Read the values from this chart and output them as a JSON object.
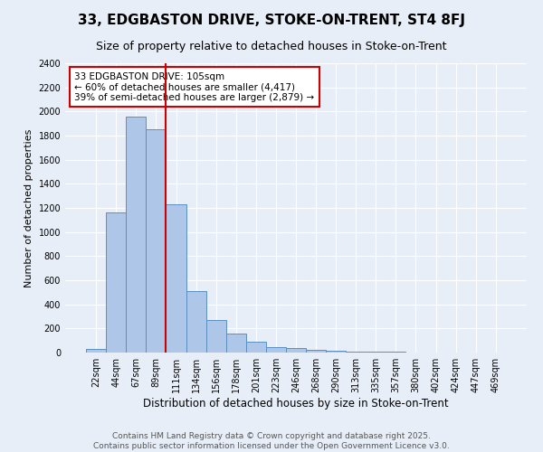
{
  "title1": "33, EDGBASTON DRIVE, STOKE-ON-TRENT, ST4 8FJ",
  "title2": "Size of property relative to detached houses in Stoke-on-Trent",
  "xlabel": "Distribution of detached houses by size in Stoke-on-Trent",
  "ylabel": "Number of detached properties",
  "categories": [
    "22sqm",
    "44sqm",
    "67sqm",
    "89sqm",
    "111sqm",
    "134sqm",
    "156sqm",
    "178sqm",
    "201sqm",
    "223sqm",
    "246sqm",
    "268sqm",
    "290sqm",
    "313sqm",
    "335sqm",
    "357sqm",
    "380sqm",
    "402sqm",
    "424sqm",
    "447sqm",
    "469sqm"
  ],
  "values": [
    30,
    1160,
    1960,
    1850,
    1230,
    510,
    270,
    155,
    90,
    48,
    40,
    22,
    15,
    10,
    5,
    5,
    3,
    3,
    2,
    2,
    2
  ],
  "bar_color": "#aec6e8",
  "bar_edge_color": "#5a8fc0",
  "background_color": "#e8eef7",
  "grid_color": "#ffffff",
  "annotation_text_line1": "33 EDGBASTON DRIVE: 105sqm",
  "annotation_text_line2": "← 60% of detached houses are smaller (4,417)",
  "annotation_text_line3": "39% of semi-detached houses are larger (2,879) →",
  "annotation_box_color": "#ffffff",
  "annotation_box_edge": "#cc0000",
  "vline_color": "#cc0000",
  "vline_x": 3.5,
  "ylim": [
    0,
    2400
  ],
  "yticks": [
    0,
    200,
    400,
    600,
    800,
    1000,
    1200,
    1400,
    1600,
    1800,
    2000,
    2200,
    2400
  ],
  "footer1": "Contains HM Land Registry data © Crown copyright and database right 2025.",
  "footer2": "Contains public sector information licensed under the Open Government Licence v3.0.",
  "title1_fontsize": 11,
  "title2_fontsize": 9,
  "tick_fontsize": 7,
  "ylabel_fontsize": 8,
  "xlabel_fontsize": 8.5,
  "footer_fontsize": 6.5,
  "annotation_fontsize": 7.5
}
